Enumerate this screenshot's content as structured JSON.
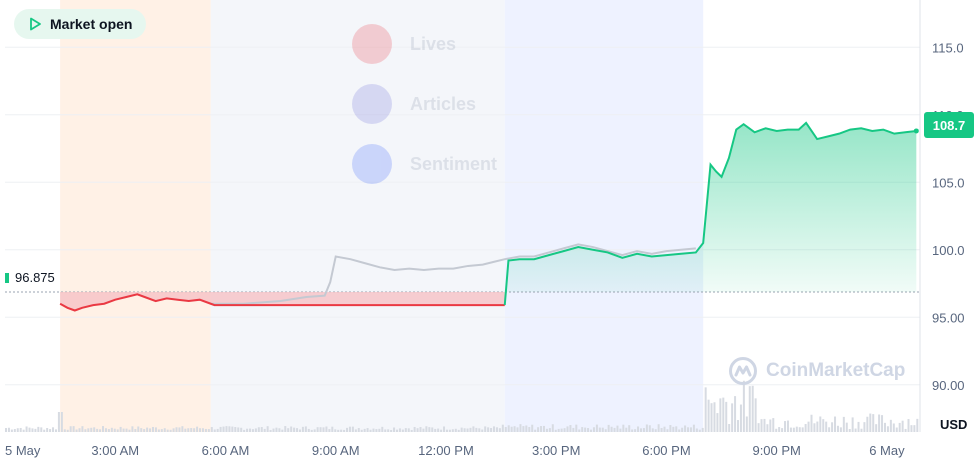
{
  "status_badge": {
    "label": "Market open"
  },
  "ghost_menu": [
    {
      "label": "Lives",
      "color": "#ea3943"
    },
    {
      "label": "Articles",
      "color": "#6b6cd9"
    },
    {
      "label": "Sentiment",
      "color": "#3861fb"
    }
  ],
  "watermark": "CoinMarketCap",
  "reference_label": "96.875",
  "current_price_label": "108.7",
  "colors": {
    "up": "#16c784",
    "down": "#ea3943",
    "compare": "#c4c9d2"
  },
  "chart_data": {
    "type": "line",
    "title": "",
    "xlabel": "",
    "ylabel": "USD",
    "y_ticks": [
      "90.00",
      "95.00",
      "100.0",
      "105.0",
      "110.0",
      "115.0"
    ],
    "ylim": [
      86.5,
      118.5
    ],
    "x_ticks": [
      "5 May",
      "3:00 AM",
      "6:00 AM",
      "9:00 AM",
      "12:00 PM",
      "3:00 PM",
      "6:00 PM",
      "9:00 PM",
      "6 May"
    ],
    "x_tick_hours": [
      0,
      3,
      6,
      9,
      12,
      15,
      18,
      21,
      24
    ],
    "xlim_hours": [
      0,
      24.9
    ],
    "reference_value": 96.875,
    "current_value": 108.7,
    "sessions": [
      {
        "name": "pre-market",
        "start": 1.5,
        "end": 5.6,
        "color": "#fff1e6"
      },
      {
        "name": "closed",
        "start": 5.6,
        "end": 13.6,
        "color": "#f4f6fa"
      },
      {
        "name": "regular",
        "start": 13.6,
        "end": 19.0,
        "color": "#eef2ff"
      }
    ],
    "series": [
      {
        "name": "",
        "role": "price",
        "points": [
          [
            1.5,
            96.0
          ],
          [
            1.7,
            95.7
          ],
          [
            1.9,
            95.5
          ],
          [
            2.1,
            95.7
          ],
          [
            2.4,
            95.9
          ],
          [
            2.7,
            96.0
          ],
          [
            3.0,
            96.3
          ],
          [
            3.3,
            96.5
          ],
          [
            3.6,
            96.7
          ],
          [
            3.8,
            96.5
          ],
          [
            4.1,
            96.2
          ],
          [
            4.4,
            96.4
          ],
          [
            4.7,
            96.3
          ],
          [
            5.0,
            96.2
          ],
          [
            5.3,
            96.3
          ],
          [
            5.6,
            96.0
          ],
          [
            5.7,
            95.9
          ],
          [
            13.6,
            95.9
          ],
          [
            13.7,
            99.2
          ],
          [
            14.0,
            99.3
          ],
          [
            14.4,
            99.3
          ],
          [
            14.8,
            99.6
          ],
          [
            15.2,
            99.9
          ],
          [
            15.6,
            100.2
          ],
          [
            16.0,
            100.0
          ],
          [
            16.4,
            99.8
          ],
          [
            16.8,
            99.4
          ],
          [
            17.2,
            99.7
          ],
          [
            17.6,
            99.5
          ],
          [
            18.0,
            99.6
          ],
          [
            18.4,
            99.7
          ],
          [
            18.8,
            99.8
          ],
          [
            19.0,
            100.5
          ],
          [
            19.2,
            106.3
          ],
          [
            19.35,
            105.8
          ],
          [
            19.5,
            105.4
          ],
          [
            19.7,
            106.8
          ],
          [
            19.9,
            108.9
          ],
          [
            20.1,
            109.3
          ],
          [
            20.4,
            108.7
          ],
          [
            20.7,
            109.0
          ],
          [
            21.0,
            108.8
          ],
          [
            21.3,
            108.9
          ],
          [
            21.6,
            108.9
          ],
          [
            21.8,
            109.4
          ],
          [
            22.1,
            108.2
          ],
          [
            22.4,
            108.4
          ],
          [
            22.7,
            108.6
          ],
          [
            23.0,
            108.9
          ],
          [
            23.3,
            109.0
          ],
          [
            23.6,
            108.8
          ],
          [
            23.9,
            108.9
          ],
          [
            24.2,
            108.6
          ],
          [
            24.5,
            108.7
          ],
          [
            24.8,
            108.8
          ]
        ]
      },
      {
        "name": "",
        "role": "comparison",
        "points": [
          [
            5.6,
            96.0
          ],
          [
            6.5,
            96.0
          ],
          [
            7.5,
            96.2
          ],
          [
            8.2,
            96.5
          ],
          [
            8.7,
            96.6
          ],
          [
            8.85,
            97.6
          ],
          [
            9.0,
            99.5
          ],
          [
            9.4,
            99.3
          ],
          [
            9.8,
            99.0
          ],
          [
            10.2,
            98.7
          ],
          [
            10.6,
            98.5
          ],
          [
            11.0,
            98.6
          ],
          [
            11.4,
            98.5
          ],
          [
            11.8,
            98.6
          ],
          [
            12.2,
            98.6
          ],
          [
            12.6,
            98.8
          ],
          [
            13.0,
            98.9
          ],
          [
            13.3,
            99.1
          ],
          [
            13.6,
            99.3
          ],
          [
            14.0,
            99.5
          ],
          [
            14.4,
            99.5
          ],
          [
            14.8,
            99.8
          ],
          [
            15.2,
            100.1
          ],
          [
            15.6,
            100.4
          ],
          [
            16.0,
            100.2
          ],
          [
            16.4,
            99.9
          ],
          [
            16.8,
            99.6
          ],
          [
            17.2,
            99.9
          ],
          [
            17.6,
            99.7
          ],
          [
            18.0,
            99.9
          ],
          [
            18.4,
            100.0
          ],
          [
            18.8,
            100.1
          ]
        ]
      }
    ],
    "volume_note": "volume bars along bottom edge"
  }
}
